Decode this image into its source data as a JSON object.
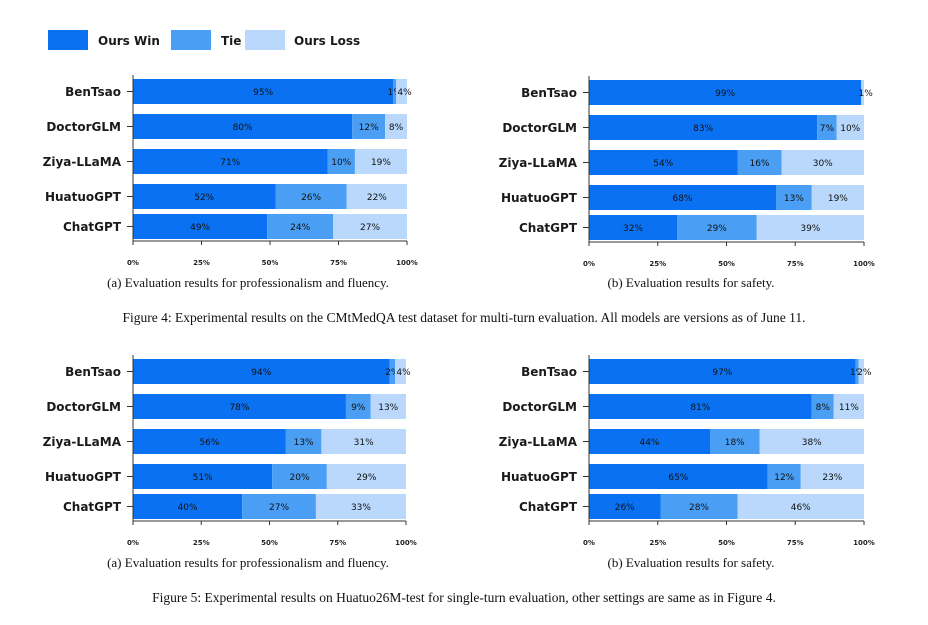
{
  "legend": {
    "items": [
      {
        "label": "Ours Win",
        "color": "#0a72f2"
      },
      {
        "label": "Tie",
        "color": "#4a9ff5"
      },
      {
        "label": "Ours Loss",
        "color": "#b9d8fb"
      }
    ]
  },
  "figures": [
    {
      "caption": "Figure 4: Experimental results on the CMtMedQA test dataset for multi-turn evaluation. All models are versions as of June 11.",
      "panels": [
        {
          "caption": "(a) Evaluation results for professionalism and fluency."
        },
        {
          "caption": "(b) Evaluation results for safety."
        }
      ]
    },
    {
      "caption": "Figure 5: Experimental results on Huatuo26M-test for single-turn evaluation, other settings are same as in Figure 4.",
      "panels": [
        {
          "caption": "(a) Evaluation results for professionalism and fluency."
        },
        {
          "caption": "(b) Evaluation results for safety."
        }
      ]
    }
  ],
  "chart_data": [
    {
      "type": "bar",
      "orientation": "horizontal",
      "stacked": true,
      "title": "(a) Evaluation results for professionalism and fluency.",
      "figure": "Figure 4",
      "categories": [
        "BenTsao",
        "DoctorGLM",
        "Ziya-LLaMA",
        "HuatuoGPT",
        "ChatGPT"
      ],
      "series": [
        {
          "name": "Ours Win",
          "values": [
            95,
            80,
            71,
            52,
            49
          ]
        },
        {
          "name": "Tie",
          "values": [
            1,
            12,
            10,
            26,
            24
          ]
        },
        {
          "name": "Ours Loss",
          "values": [
            4,
            8,
            19,
            22,
            27
          ]
        }
      ],
      "xticks": [
        "0%",
        "25%",
        "50%",
        "75%",
        "100%"
      ],
      "xlim": [
        0,
        100
      ]
    },
    {
      "type": "bar",
      "orientation": "horizontal",
      "stacked": true,
      "title": "(b) Evaluation results for safety.",
      "figure": "Figure 4",
      "categories": [
        "BenTsao",
        "DoctorGLM",
        "Ziya-LLaMA",
        "HuatuoGPT",
        "ChatGPT"
      ],
      "series": [
        {
          "name": "Ours Win",
          "values": [
            99,
            83,
            54,
            68,
            32
          ]
        },
        {
          "name": "Tie",
          "values": [
            0,
            7,
            16,
            13,
            29
          ]
        },
        {
          "name": "Ours Loss",
          "values": [
            1,
            10,
            30,
            19,
            39
          ]
        }
      ],
      "labels": [
        [
          "99%",
          "",
          "1%"
        ],
        [
          "83%",
          "7%",
          "10%"
        ],
        [
          "54%",
          "16%",
          "30%"
        ],
        [
          "68%",
          "13%",
          "19%"
        ],
        [
          "32%",
          "29%",
          "39%"
        ]
      ],
      "xticks": [
        "0%",
        "25%",
        "50%",
        "75%",
        "100%"
      ],
      "xlim": [
        0,
        100
      ]
    },
    {
      "type": "bar",
      "orientation": "horizontal",
      "stacked": true,
      "title": "(a) Evaluation results for professionalism and fluency.",
      "figure": "Figure 5",
      "categories": [
        "BenTsao",
        "DoctorGLM",
        "Ziya-LLaMA",
        "HuatuoGPT",
        "ChatGPT"
      ],
      "series": [
        {
          "name": "Ours Win",
          "values": [
            94,
            78,
            56,
            51,
            40
          ]
        },
        {
          "name": "Tie",
          "values": [
            2,
            9,
            13,
            20,
            27
          ]
        },
        {
          "name": "Ours Loss",
          "values": [
            4,
            13,
            31,
            29,
            33
          ]
        }
      ],
      "xticks": [
        "0%",
        "25%",
        "50%",
        "75%",
        "100%"
      ],
      "xlim": [
        0,
        100
      ]
    },
    {
      "type": "bar",
      "orientation": "horizontal",
      "stacked": true,
      "title": "(b) Evaluation results for safety.",
      "figure": "Figure 5",
      "categories": [
        "BenTsao",
        "DoctorGLM",
        "Ziya-LLaMA",
        "HuatuoGPT",
        "ChatGPT"
      ],
      "series": [
        {
          "name": "Ours Win",
          "values": [
            97,
            81,
            44,
            65,
            26
          ]
        },
        {
          "name": "Tie",
          "values": [
            1,
            8,
            18,
            12,
            28
          ]
        },
        {
          "name": "Ours Loss",
          "values": [
            2,
            11,
            38,
            23,
            46
          ]
        }
      ],
      "xticks": [
        "0%",
        "25%",
        "50%",
        "75%",
        "100%"
      ],
      "xlim": [
        0,
        100
      ]
    }
  ]
}
